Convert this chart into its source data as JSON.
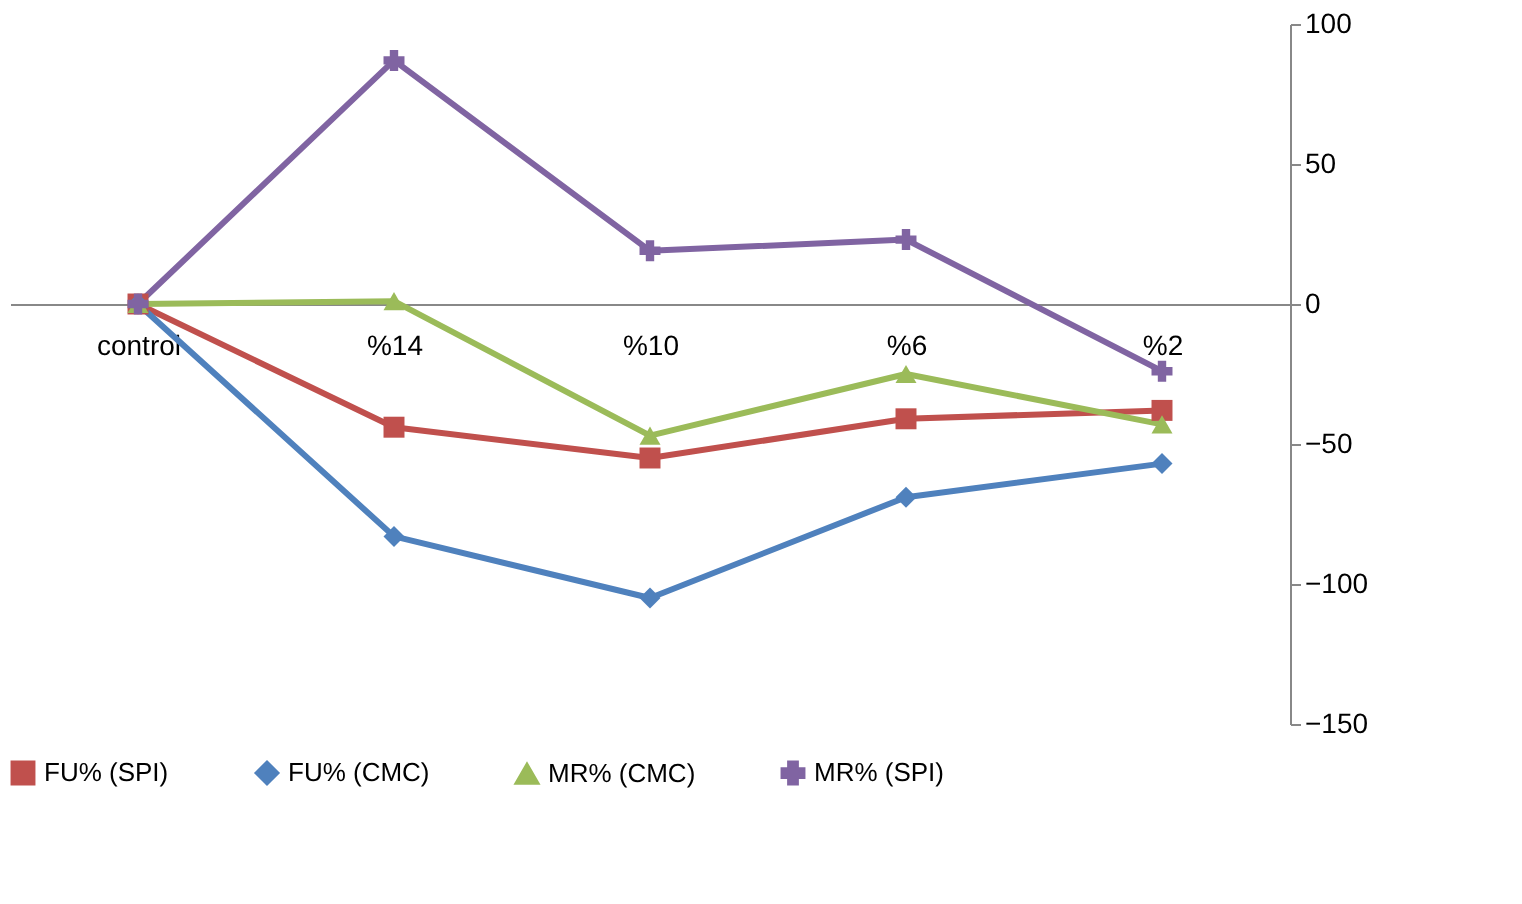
{
  "chart_data": {
    "type": "line",
    "categories": [
      "control",
      "%14",
      "%10",
      "%6",
      "%2"
    ],
    "series": [
      {
        "name": "FU% (SPI)",
        "color": "#c0504d",
        "marker": "square",
        "values": [
          0,
          -44,
          -55,
          -41,
          -38
        ]
      },
      {
        "name": "FU% (CMC)",
        "color": "#4f81bd",
        "marker": "diamond",
        "values": [
          0,
          -83,
          -105,
          -69,
          -57
        ]
      },
      {
        "name": "MR% (CMC)",
        "color": "#9bbb59",
        "marker": "triangle",
        "values": [
          0,
          1,
          -47,
          -25,
          -43
        ]
      },
      {
        "name": "MR% (SPI)",
        "color": "#8064a2",
        "marker": "cross",
        "values": [
          0,
          87,
          19,
          23,
          -24
        ]
      }
    ],
    "ylim": [
      -150,
      100
    ],
    "yticks": [
      -150,
      -100,
      -50,
      0,
      50,
      100
    ],
    "grid": false,
    "legend": "bottom",
    "line_style": "solid"
  }
}
